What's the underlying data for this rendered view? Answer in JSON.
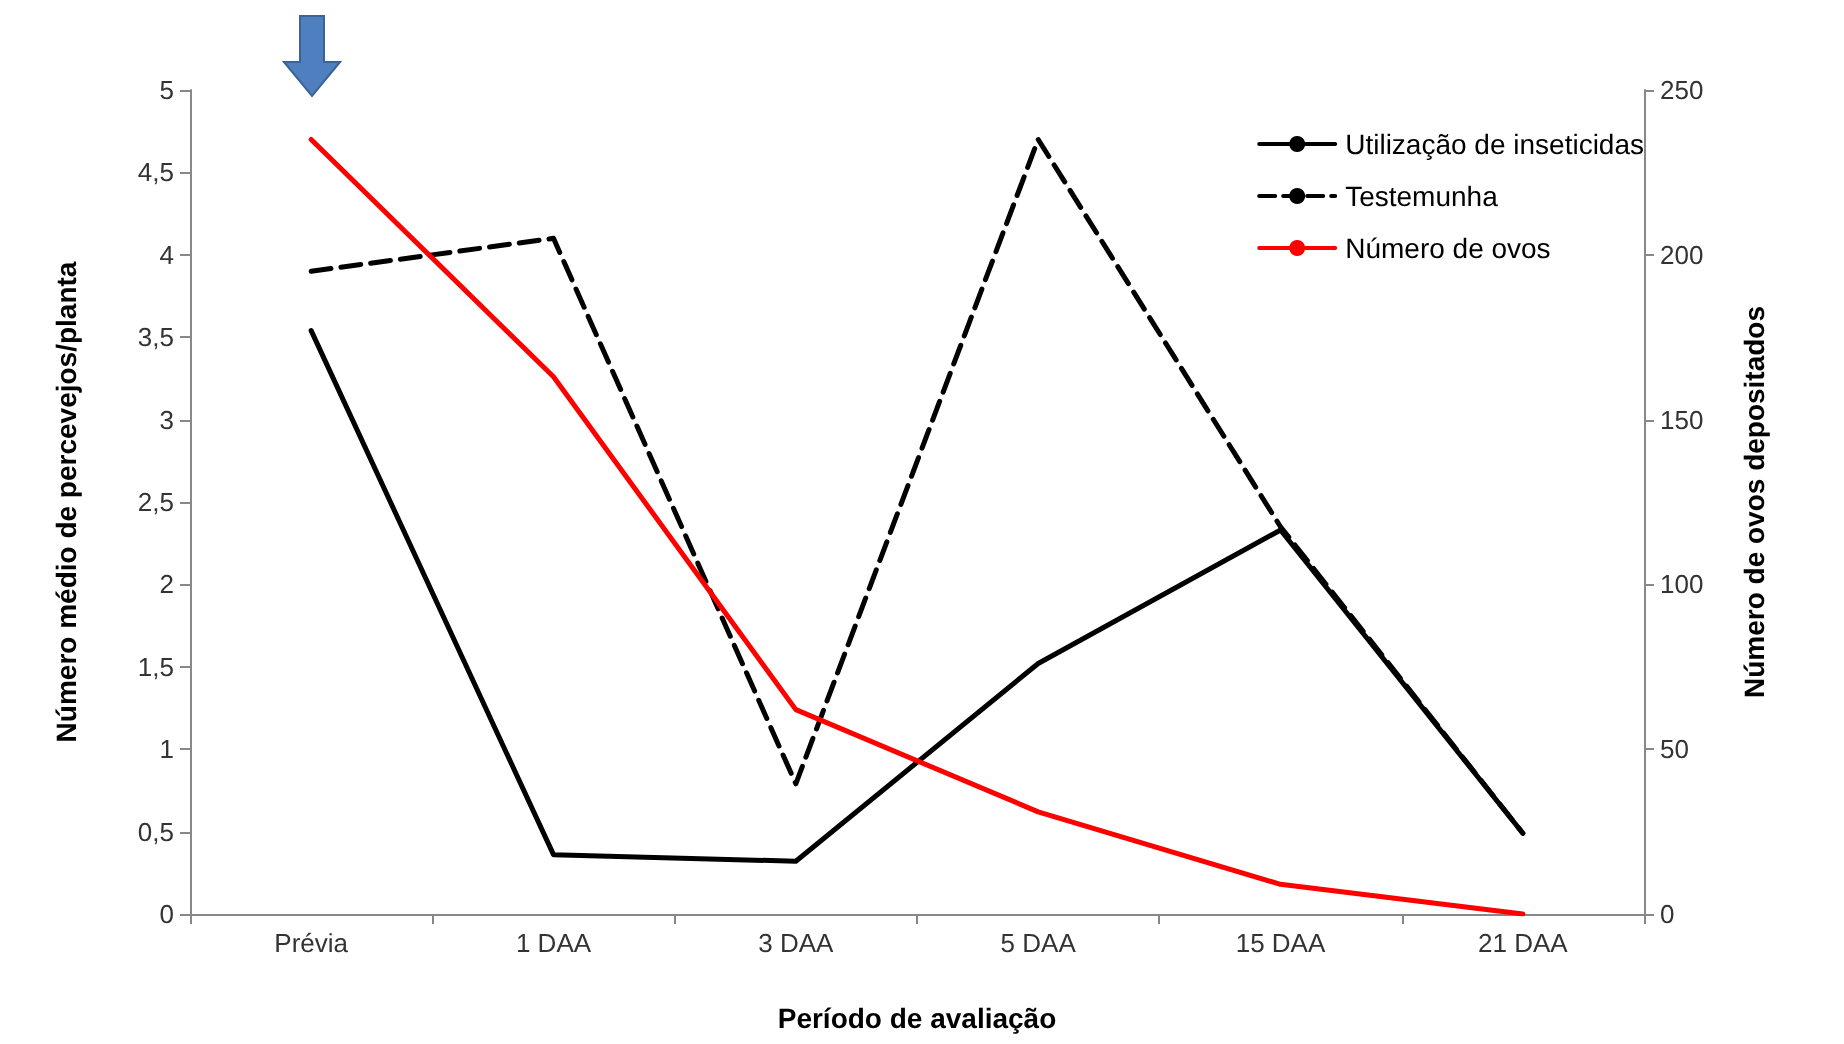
{
  "chart_data": {
    "type": "line",
    "xlabel": "Período de avaliação",
    "ylabel": "Número médio de percevejos/planta",
    "y2label": "Número de ovos depositados",
    "categories": [
      "Prévia",
      "1 DAA",
      "3 DAA",
      "5 DAA",
      "15 DAA",
      "21 DAA"
    ],
    "series": [
      {
        "name": "Utilização de inseticidas",
        "color": "#000000",
        "line_style": "solid",
        "values": [
          3.54,
          0.36,
          0.32,
          1.52,
          2.33,
          0.49
        ]
      },
      {
        "name": "Testemunha",
        "color": "#000000",
        "line_style": "dashed",
        "values": [
          3.9,
          4.1,
          0.79,
          4.7,
          2.35,
          0.49
        ]
      },
      {
        "name": "Número de ovos",
        "color": "#ff0000",
        "line_style": "solid",
        "axis": "y2",
        "values": [
          235,
          163,
          62,
          31,
          9,
          0
        ]
      }
    ],
    "ylim": [
      0,
      5
    ],
    "yticks": [
      0,
      {
        "value": 0.5,
        "label": "0,5"
      },
      1,
      {
        "value": 1.5,
        "label": "1,5"
      },
      2,
      {
        "value": 2.5,
        "label": "2,5"
      },
      3,
      {
        "value": 3.5,
        "label": "3,5"
      },
      4,
      {
        "value": 4.5,
        "label": "4,5"
      },
      5
    ],
    "y2lim": [
      0,
      250
    ],
    "y2ticks": [
      0,
      50,
      100,
      150,
      200,
      250
    ],
    "grid": false,
    "legend": "top right",
    "marker": "none"
  }
}
